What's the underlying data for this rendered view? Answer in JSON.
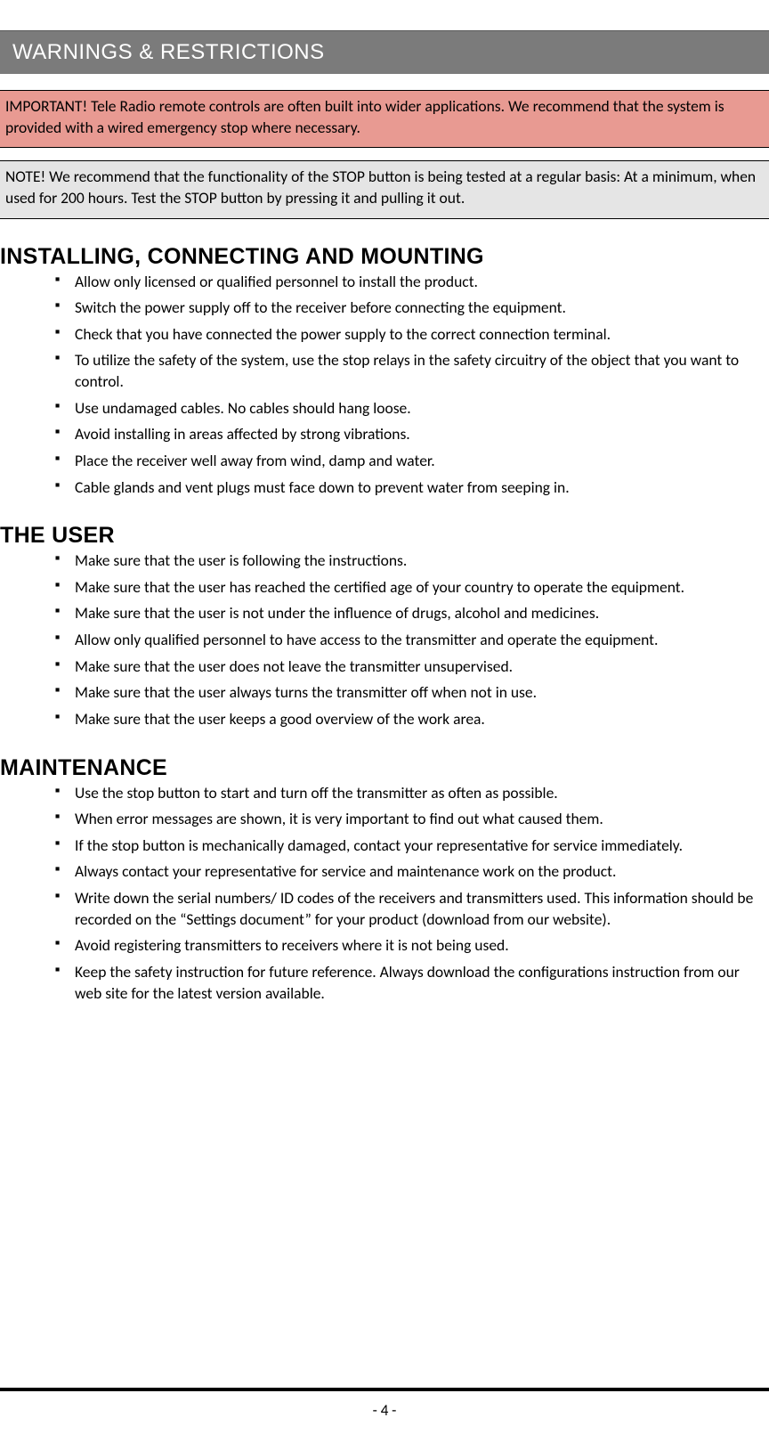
{
  "header": {
    "title": "WARNINGS & RESTRICTIONS"
  },
  "important_box": {
    "text": "IMPORTANT! Tele Radio remote controls are often built into wider applications. We recommend that the system is provided with a wired emergency stop where necessary.",
    "bg_color": "#e89a92"
  },
  "note_box": {
    "text": "NOTE! We recommend that the functionality of the STOP button is being tested at a regular basis: At a minimum, when used for 200 hours. Test the STOP button by pressing it and pulling it out.",
    "bg_color": "#e5e5e5"
  },
  "sections": {
    "install": {
      "title": "INSTALLING, CONNECTING AND MOUNTING",
      "items": [
        "Allow only licensed or qualified personnel to install the product.",
        "Switch the power supply off to the receiver before connecting the equipment.",
        "Check that you have connected the power supply to the correct connection terminal.",
        "To utilize the safety of the system, use the stop relays in the safety circuitry of the object that you want to control.",
        "Use undamaged cables. No cables should hang loose.",
        "Avoid installing in areas affected by strong vibrations.",
        "Place the receiver well away from wind, damp and water.",
        "Cable glands and vent plugs must face down to prevent water from seeping in."
      ]
    },
    "user": {
      "title": "THE USER",
      "items": [
        "Make sure that the user is following the instructions.",
        "Make sure that the user has reached the certified age of your country to operate the equipment.",
        "Make sure that the user is not under the influence of drugs, alcohol and medicines.",
        "Allow only qualified personnel to have access to the transmitter and operate the equipment.",
        "Make sure that the user does not leave the transmitter unsupervised.",
        "Make sure that the user always turns the transmitter off when not in use.",
        "Make sure that the user keeps a good overview of the work area."
      ]
    },
    "maintenance": {
      "title": "MAINTENANCE",
      "items": [
        "Use the stop button to start and turn off the transmitter as often as possible.",
        "When error messages are shown, it is very important to find out what caused them.",
        "If the stop button is mechanically damaged, contact your representative for service immediately.",
        "Always contact your representative for service and maintenance work on the product.",
        "Write down the serial numbers/ ID codes of the receivers and transmitters used. This information should be recorded on the “Settings document” for your product (download from our website).",
        "Avoid registering transmitters to receivers where it is not being used.",
        "Keep the safety instruction for future reference. Always download the configurations instruction from our web site for the latest version available."
      ]
    }
  },
  "page_number": "- 4 -",
  "colors": {
    "header_band_bg": "#7b7b7b",
    "header_band_text": "#ffffff",
    "body_text": "#000000",
    "footer_rule": "#000000"
  }
}
